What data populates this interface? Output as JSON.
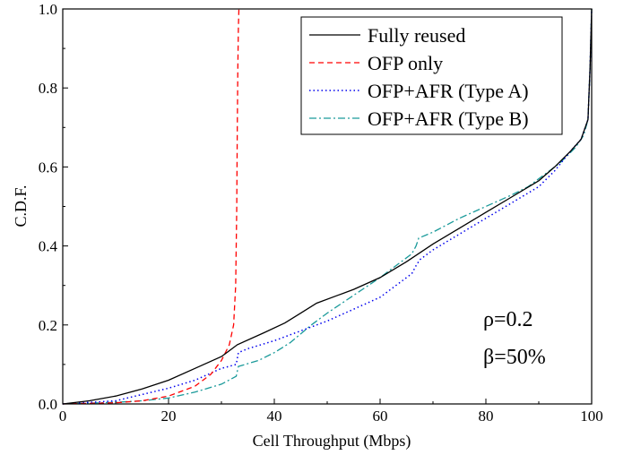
{
  "chart_data": {
    "type": "line",
    "xlabel": "Cell Throughput (Mbps)",
    "ylabel": "C.D.F.",
    "xlim": [
      0,
      100
    ],
    "ylim": [
      0,
      1.0
    ],
    "xticks": [
      "0",
      "20",
      "40",
      "60",
      "80",
      "100"
    ],
    "yticks": [
      "0.0",
      "0.2",
      "0.4",
      "0.6",
      "0.8",
      "1.0"
    ],
    "grid": false,
    "legend_position": "top-right",
    "annotations": [
      "ρ=0.2",
      "β=50%"
    ],
    "series": [
      {
        "name": "Fully reused",
        "color": "#000000",
        "style": "solid",
        "x": [
          0,
          5,
          10,
          15,
          20,
          25,
          30,
          33,
          38,
          42,
          45,
          48,
          52,
          55,
          60,
          65,
          70,
          75,
          80,
          85,
          90,
          93,
          96,
          98,
          99.3,
          99.7,
          100
        ],
        "y": [
          0,
          0.008,
          0.02,
          0.038,
          0.06,
          0.09,
          0.12,
          0.15,
          0.18,
          0.205,
          0.23,
          0.255,
          0.275,
          0.29,
          0.32,
          0.36,
          0.405,
          0.445,
          0.485,
          0.525,
          0.565,
          0.6,
          0.64,
          0.67,
          0.72,
          0.85,
          1.0
        ]
      },
      {
        "name": "OFP only",
        "color": "#ff0000",
        "style": "dashed",
        "x": [
          0,
          10,
          15,
          20,
          25,
          28,
          30,
          31.5,
          32.3,
          32.7,
          32.9,
          33.0,
          33.1,
          33.2,
          33.3
        ],
        "y": [
          0,
          0.003,
          0.008,
          0.02,
          0.045,
          0.075,
          0.11,
          0.15,
          0.2,
          0.3,
          0.5,
          0.7,
          0.85,
          0.95,
          1.0
        ]
      },
      {
        "name": "OFP+AFR (Type A)",
        "color": "#0000ee",
        "style": "dotted",
        "x": [
          0,
          10,
          20,
          25,
          30,
          32.8,
          33.2,
          35,
          40,
          45,
          50,
          55,
          60,
          63,
          66,
          66.8,
          67.5,
          70,
          75,
          80,
          85,
          90,
          93,
          96,
          98,
          99.3,
          99.7,
          100
        ],
        "y": [
          0,
          0.008,
          0.04,
          0.06,
          0.09,
          0.1,
          0.13,
          0.14,
          0.16,
          0.185,
          0.21,
          0.24,
          0.27,
          0.3,
          0.33,
          0.35,
          0.365,
          0.39,
          0.43,
          0.47,
          0.51,
          0.55,
          0.59,
          0.64,
          0.67,
          0.72,
          0.85,
          1.0
        ]
      },
      {
        "name": "OFP+AFR (Type B)",
        "color": "#1a9a9a",
        "style": "dashdot",
        "x": [
          0,
          10,
          15,
          20,
          25,
          30,
          32.8,
          33.2,
          37,
          40,
          43,
          47,
          50,
          55,
          60,
          63,
          66,
          66.8,
          67.3,
          70,
          75,
          80,
          85,
          88,
          91,
          94,
          97,
          98.5,
          99.3,
          99.7,
          100
        ],
        "y": [
          0,
          0.004,
          0.008,
          0.015,
          0.03,
          0.05,
          0.07,
          0.095,
          0.11,
          0.13,
          0.155,
          0.2,
          0.23,
          0.275,
          0.32,
          0.35,
          0.38,
          0.4,
          0.42,
          0.435,
          0.47,
          0.5,
          0.53,
          0.55,
          0.58,
          0.61,
          0.65,
          0.68,
          0.72,
          0.85,
          1.0
        ]
      }
    ]
  }
}
